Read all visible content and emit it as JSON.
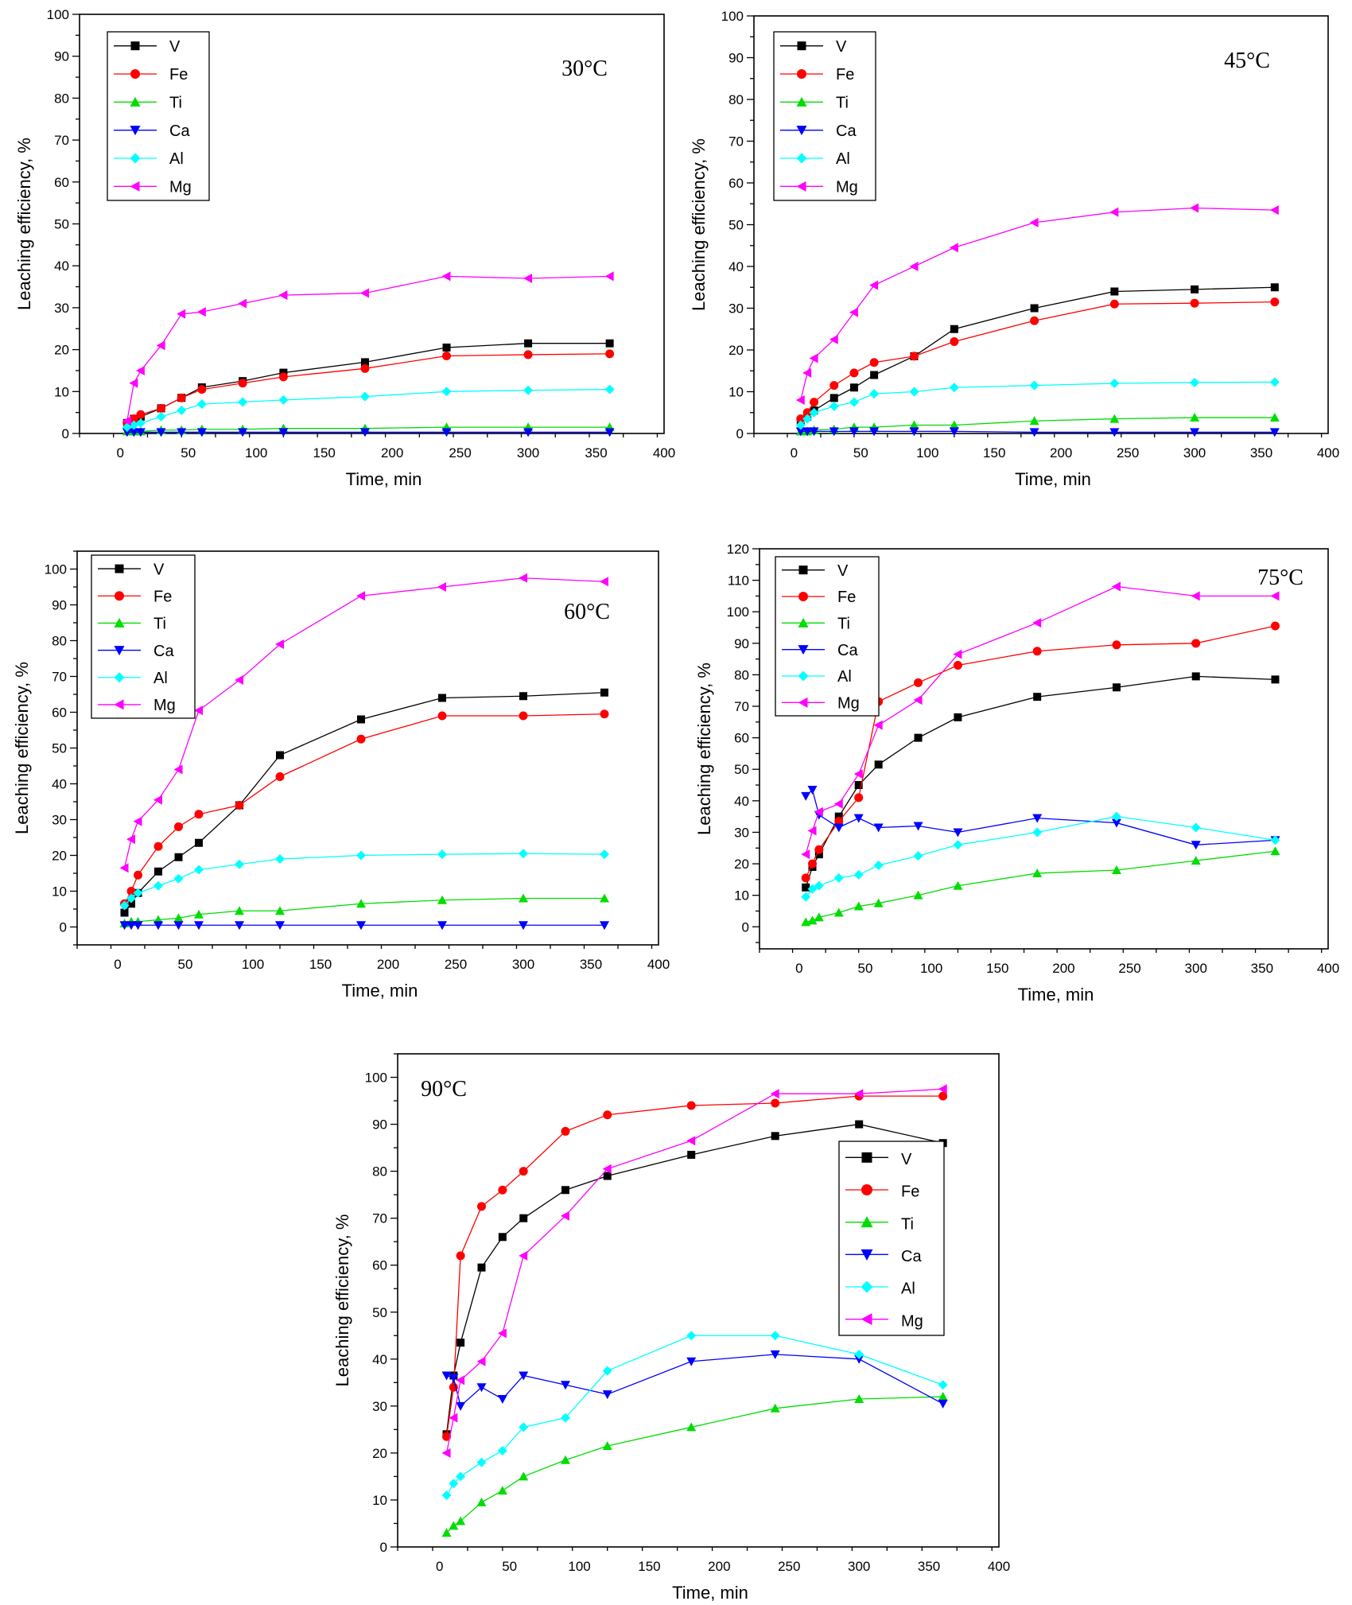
{
  "chart_data": [
    {
      "type": "line",
      "annotation": "30°C",
      "xlabel": "Time, min",
      "ylabel": "Leaching efficiency, %",
      "xlim": [
        -30,
        400
      ],
      "ylim": [
        0,
        100
      ],
      "xticks": [
        0,
        50,
        100,
        150,
        200,
        250,
        300,
        350,
        400
      ],
      "yticks": [
        0,
        10,
        20,
        30,
        40,
        50,
        60,
        70,
        80,
        90,
        100
      ],
      "legend_position": "top-left",
      "x": [
        5,
        10,
        15,
        30,
        45,
        60,
        90,
        120,
        180,
        240,
        300,
        360
      ],
      "series": [
        {
          "name": "V",
          "color": "#000000",
          "marker": "square",
          "values": [
            2.5,
            3.5,
            4,
            6,
            8.5,
            11,
            12.5,
            14.5,
            17,
            20.5,
            21.5,
            21.5
          ]
        },
        {
          "name": "Fe",
          "color": "#ff0000",
          "marker": "circle",
          "values": [
            2.5,
            3.5,
            4.5,
            6,
            8.5,
            10.5,
            12,
            13.5,
            15.5,
            18.5,
            18.8,
            19
          ]
        },
        {
          "name": "Ti",
          "color": "#00dd00",
          "marker": "triangle-up",
          "values": [
            0.5,
            0.5,
            0.5,
            0.8,
            0.8,
            1,
            1,
            1.2,
            1.2,
            1.5,
            1.5,
            1.5
          ]
        },
        {
          "name": "Ca",
          "color": "#0000ff",
          "marker": "triangle-down",
          "values": [
            0.3,
            0.3,
            0.3,
            0.3,
            0.3,
            0.3,
            0.3,
            0.3,
            0.3,
            0.3,
            0.3,
            0.3
          ]
        },
        {
          "name": "Al",
          "color": "#00ffff",
          "marker": "diamond",
          "values": [
            1.5,
            2,
            2.5,
            4,
            5.5,
            7,
            7.5,
            8,
            8.8,
            10,
            10.3,
            10.5
          ]
        },
        {
          "name": "Mg",
          "color": "#ff00ff",
          "marker": "triangle-left",
          "values": [
            3,
            12,
            15,
            21,
            28.5,
            29,
            31,
            33,
            33.5,
            37.5,
            37,
            37.5
          ]
        }
      ]
    },
    {
      "type": "line",
      "annotation": "45°C",
      "xlabel": "Time, min",
      "ylabel": "Leaching efficiency, %",
      "xlim": [
        -30,
        400
      ],
      "ylim": [
        0,
        100
      ],
      "xticks": [
        0,
        50,
        100,
        150,
        200,
        250,
        300,
        350,
        400
      ],
      "yticks": [
        0,
        10,
        20,
        30,
        40,
        50,
        60,
        70,
        80,
        90,
        100
      ],
      "legend_position": "top-left",
      "x": [
        5,
        10,
        15,
        30,
        45,
        60,
        90,
        120,
        180,
        240,
        300,
        360
      ],
      "series": [
        {
          "name": "V",
          "color": "#000000",
          "marker": "square",
          "values": [
            3,
            4,
            5.5,
            8.5,
            11,
            14,
            18.5,
            25,
            30,
            34,
            34.5,
            35
          ]
        },
        {
          "name": "Fe",
          "color": "#ff0000",
          "marker": "circle",
          "values": [
            3.5,
            5,
            7.5,
            11.5,
            14.5,
            17,
            18.5,
            22,
            27,
            31,
            31.2,
            31.5
          ]
        },
        {
          "name": "Ti",
          "color": "#00dd00",
          "marker": "triangle-up",
          "values": [
            0.5,
            0.5,
            0.8,
            1,
            1.5,
            1.5,
            2,
            2,
            3,
            3.5,
            3.8,
            3.8
          ]
        },
        {
          "name": "Ca",
          "color": "#0000ff",
          "marker": "triangle-down",
          "values": [
            0.5,
            0.5,
            0.5,
            0.5,
            0.5,
            0.5,
            0.5,
            0.5,
            0.3,
            0.3,
            0.3,
            0.3
          ]
        },
        {
          "name": "Al",
          "color": "#00ffff",
          "marker": "diamond",
          "values": [
            2,
            3.5,
            5,
            6.5,
            7.5,
            9.5,
            10,
            11,
            11.5,
            12,
            12.2,
            12.3
          ]
        },
        {
          "name": "Mg",
          "color": "#ff00ff",
          "marker": "triangle-left",
          "values": [
            8,
            14.5,
            18,
            22.5,
            29,
            35.5,
            40,
            44.5,
            50.5,
            53,
            54,
            53.5
          ]
        }
      ]
    },
    {
      "type": "line",
      "annotation": "60°C",
      "xlabel": "Time, min",
      "ylabel": "Leaching efficiency, %",
      "xlim": [
        -30,
        400
      ],
      "ylim": [
        -5,
        105
      ],
      "xticks": [
        0,
        50,
        100,
        150,
        200,
        250,
        300,
        350,
        400
      ],
      "yticks": [
        0,
        10,
        20,
        30,
        40,
        50,
        60,
        70,
        80,
        90,
        100
      ],
      "legend_position": "top-left",
      "x": [
        5,
        10,
        15,
        30,
        45,
        60,
        90,
        120,
        180,
        240,
        300,
        360
      ],
      "series": [
        {
          "name": "V",
          "color": "#000000",
          "marker": "square",
          "values": [
            4,
            6.5,
            9.5,
            15.5,
            19.5,
            23.5,
            34,
            48,
            58,
            64,
            64.5,
            65.5
          ]
        },
        {
          "name": "Fe",
          "color": "#ff0000",
          "marker": "circle",
          "values": [
            6.5,
            10,
            14.5,
            22.5,
            28,
            31.5,
            34,
            42,
            52.5,
            59,
            59,
            59.5
          ]
        },
        {
          "name": "Ti",
          "color": "#00dd00",
          "marker": "triangle-up",
          "values": [
            1,
            1.5,
            1.5,
            2,
            2.5,
            3.5,
            4.5,
            4.5,
            6.5,
            7.5,
            8,
            8
          ]
        },
        {
          "name": "Ca",
          "color": "#0000ff",
          "marker": "triangle-down",
          "values": [
            0.5,
            0.5,
            0.5,
            0.5,
            0.5,
            0.5,
            0.5,
            0.5,
            0.5,
            0.5,
            0.5,
            0.5
          ]
        },
        {
          "name": "Al",
          "color": "#00ffff",
          "marker": "diamond",
          "values": [
            6,
            8,
            9.5,
            11.5,
            13.5,
            16,
            17.5,
            19,
            20,
            20.3,
            20.5,
            20.3
          ]
        },
        {
          "name": "Mg",
          "color": "#ff00ff",
          "marker": "triangle-left",
          "values": [
            16.5,
            24.5,
            29.5,
            35.5,
            44,
            60.5,
            69,
            79,
            92.5,
            95,
            97.5,
            96.5
          ]
        }
      ]
    },
    {
      "type": "line",
      "annotation": "75°C",
      "xlabel": "Time, min",
      "ylabel": "Leaching efficiency, %",
      "xlim": [
        -30,
        400
      ],
      "ylim": [
        -7,
        120
      ],
      "xticks": [
        0,
        50,
        100,
        150,
        200,
        250,
        300,
        350,
        400
      ],
      "yticks": [
        0,
        10,
        20,
        30,
        40,
        50,
        60,
        70,
        80,
        90,
        100,
        110,
        120
      ],
      "legend_position": "top-left",
      "x": [
        5,
        10,
        15,
        30,
        45,
        60,
        90,
        120,
        180,
        240,
        300,
        360
      ],
      "series": [
        {
          "name": "V",
          "color": "#000000",
          "marker": "square",
          "values": [
            12.5,
            19,
            23,
            35,
            45,
            51.5,
            60,
            66.5,
            73,
            76,
            79.5,
            78.5
          ]
        },
        {
          "name": "Fe",
          "color": "#ff0000",
          "marker": "circle",
          "values": [
            15.5,
            20,
            24.5,
            33.5,
            41,
            71.5,
            77.5,
            83,
            87.5,
            89.5,
            90,
            95.5
          ]
        },
        {
          "name": "Ti",
          "color": "#00dd00",
          "marker": "triangle-up",
          "values": [
            1.5,
            2,
            3,
            4.5,
            6.5,
            7.5,
            10,
            13,
            17,
            18,
            21,
            24
          ]
        },
        {
          "name": "Ca",
          "color": "#0000ff",
          "marker": "triangle-down",
          "values": [
            41.5,
            43.5,
            35.5,
            31.5,
            34.5,
            31.5,
            32,
            30,
            34.5,
            33,
            26,
            27.5
          ]
        },
        {
          "name": "Al",
          "color": "#00ffff",
          "marker": "diamond",
          "values": [
            9.5,
            12,
            13,
            15.5,
            16.5,
            19.5,
            22.5,
            26,
            30,
            35,
            31.5,
            27.5
          ]
        },
        {
          "name": "Mg",
          "color": "#ff00ff",
          "marker": "triangle-left",
          "values": [
            23,
            30.5,
            36.5,
            39,
            48.5,
            64,
            72,
            86.5,
            96.5,
            108,
            105,
            105
          ]
        }
      ]
    },
    {
      "type": "line",
      "annotation": "90°C",
      "xlabel": "Time, min",
      "ylabel": "Leaching efficiency, %",
      "xlim": [
        -30,
        400
      ],
      "ylim": [
        0,
        105
      ],
      "xticks": [
        0,
        50,
        100,
        150,
        200,
        250,
        300,
        350,
        400
      ],
      "yticks": [
        0,
        10,
        20,
        30,
        40,
        50,
        60,
        70,
        80,
        90,
        100
      ],
      "legend_position": "center-right",
      "x": [
        5,
        10,
        15,
        30,
        45,
        60,
        90,
        120,
        180,
        240,
        300,
        360
      ],
      "series": [
        {
          "name": "V",
          "color": "#000000",
          "marker": "square",
          "values": [
            24,
            36.5,
            43.5,
            59.5,
            66,
            70,
            76,
            79,
            83.5,
            87.5,
            90,
            86
          ]
        },
        {
          "name": "Fe",
          "color": "#ff0000",
          "marker": "circle",
          "values": [
            23.5,
            34,
            62,
            72.5,
            76,
            80,
            88.5,
            92,
            94,
            94.5,
            96,
            96
          ]
        },
        {
          "name": "Ti",
          "color": "#00dd00",
          "marker": "triangle-up",
          "values": [
            3,
            4.5,
            5.5,
            9.5,
            12,
            15,
            18.5,
            21.5,
            25.5,
            29.5,
            31.5,
            32
          ]
        },
        {
          "name": "Ca",
          "color": "#0000ff",
          "marker": "triangle-down",
          "values": [
            36.5,
            36,
            30,
            34,
            31.5,
            36.5,
            34.5,
            32.5,
            39.5,
            41,
            40,
            30.5
          ]
        },
        {
          "name": "Al",
          "color": "#00ffff",
          "marker": "diamond",
          "values": [
            11,
            13.5,
            15,
            18,
            20.5,
            25.5,
            27.5,
            37.5,
            45,
            45,
            41,
            34.5
          ]
        },
        {
          "name": "Mg",
          "color": "#ff00ff",
          "marker": "triangle-left",
          "values": [
            20,
            27.5,
            35.5,
            39.5,
            45.5,
            62,
            70.5,
            80.5,
            86.5,
            96.5,
            96.5,
            97.5
          ]
        }
      ]
    }
  ]
}
